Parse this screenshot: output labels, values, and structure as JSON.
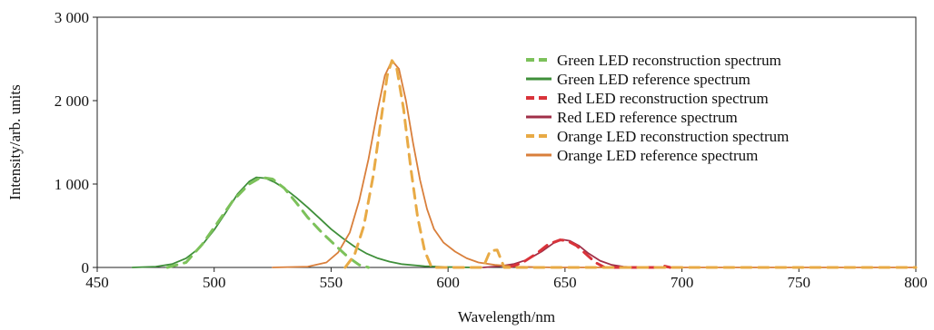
{
  "chart_data": {
    "type": "line",
    "title": "",
    "xlabel": "Wavelength/nm",
    "ylabel": "Intensity/arb. units",
    "xlim": [
      450,
      800
    ],
    "ylim": [
      0,
      3000
    ],
    "x_ticks": [
      450,
      500,
      550,
      600,
      650,
      700,
      750,
      800
    ],
    "x_tick_labels": [
      "450",
      "500",
      "550",
      "600",
      "650",
      "700",
      "750",
      "800"
    ],
    "y_ticks": [
      0,
      1000,
      2000,
      3000
    ],
    "y_tick_labels": [
      "0",
      "1 000",
      "2 000",
      "3 000"
    ],
    "grid": false,
    "legend_position": "top-right",
    "series": [
      {
        "name": "Green LED reconstruction spectrum",
        "style": "dashed",
        "color": "#7cc15a",
        "points": [
          [
            480,
            0
          ],
          [
            488,
            60
          ],
          [
            495,
            280
          ],
          [
            502,
            560
          ],
          [
            508,
            800
          ],
          [
            515,
            1000
          ],
          [
            520,
            1080
          ],
          [
            525,
            1060
          ],
          [
            530,
            950
          ],
          [
            535,
            780
          ],
          [
            540,
            600
          ],
          [
            546,
            420
          ],
          [
            552,
            260
          ],
          [
            557,
            130
          ],
          [
            562,
            30
          ],
          [
            566,
            0
          ]
        ]
      },
      {
        "name": "Green LED reference spectrum",
        "style": "solid",
        "color": "#3f8f3a",
        "points": [
          [
            465,
            0
          ],
          [
            475,
            10
          ],
          [
            482,
            40
          ],
          [
            488,
            110
          ],
          [
            494,
            240
          ],
          [
            500,
            450
          ],
          [
            505,
            660
          ],
          [
            510,
            880
          ],
          [
            515,
            1030
          ],
          [
            518,
            1080
          ],
          [
            522,
            1070
          ],
          [
            526,
            1020
          ],
          [
            530,
            950
          ],
          [
            535,
            840
          ],
          [
            540,
            720
          ],
          [
            545,
            590
          ],
          [
            550,
            460
          ],
          [
            555,
            350
          ],
          [
            560,
            250
          ],
          [
            565,
            170
          ],
          [
            570,
            110
          ],
          [
            575,
            70
          ],
          [
            580,
            40
          ],
          [
            590,
            15
          ],
          [
            600,
            5
          ],
          [
            610,
            0
          ]
        ]
      },
      {
        "name": "Red LED reconstruction spectrum",
        "style": "dashed",
        "color": "#d9333a",
        "points": [
          [
            626,
            0
          ],
          [
            632,
            60
          ],
          [
            638,
            170
          ],
          [
            643,
            280
          ],
          [
            648,
            330
          ],
          [
            651,
            320
          ],
          [
            655,
            260
          ],
          [
            659,
            160
          ],
          [
            663,
            60
          ],
          [
            667,
            0
          ],
          [
            690,
            0
          ],
          [
            692,
            20
          ],
          [
            695,
            0
          ]
        ]
      },
      {
        "name": "Red LED reference spectrum",
        "style": "solid",
        "color": "#a02f48",
        "points": [
          [
            615,
            0
          ],
          [
            622,
            15
          ],
          [
            628,
            40
          ],
          [
            634,
            95
          ],
          [
            640,
            190
          ],
          [
            645,
            290
          ],
          [
            649,
            335
          ],
          [
            652,
            320
          ],
          [
            656,
            260
          ],
          [
            660,
            170
          ],
          [
            665,
            80
          ],
          [
            670,
            30
          ],
          [
            675,
            10
          ],
          [
            682,
            0
          ]
        ]
      },
      {
        "name": "Orange LED reconstruction spectrum",
        "style": "dashed",
        "color": "#e8aa45",
        "points": [
          [
            556,
            0
          ],
          [
            560,
            150
          ],
          [
            564,
            500
          ],
          [
            568,
            1100
          ],
          [
            571,
            1700
          ],
          [
            574,
            2300
          ],
          [
            576,
            2480
          ],
          [
            578,
            2400
          ],
          [
            581,
            1900
          ],
          [
            584,
            1200
          ],
          [
            587,
            600
          ],
          [
            590,
            200
          ],
          [
            593,
            0
          ],
          [
            615,
            0
          ],
          [
            618,
            200
          ],
          [
            621,
            210
          ],
          [
            624,
            0
          ],
          [
            690,
            0
          ],
          [
            800,
            0
          ]
        ]
      },
      {
        "name": "Orange LED reference spectrum",
        "style": "solid",
        "color": "#d97f3b",
        "points": [
          [
            525,
            0
          ],
          [
            540,
            10
          ],
          [
            548,
            60
          ],
          [
            553,
            180
          ],
          [
            558,
            420
          ],
          [
            562,
            800
          ],
          [
            566,
            1300
          ],
          [
            570,
            1900
          ],
          [
            573,
            2300
          ],
          [
            576,
            2480
          ],
          [
            579,
            2380
          ],
          [
            582,
            2000
          ],
          [
            585,
            1500
          ],
          [
            588,
            1050
          ],
          [
            591,
            700
          ],
          [
            594,
            460
          ],
          [
            598,
            300
          ],
          [
            603,
            190
          ],
          [
            608,
            110
          ],
          [
            613,
            60
          ],
          [
            620,
            30
          ],
          [
            630,
            10
          ],
          [
            645,
            0
          ],
          [
            800,
            0
          ]
        ]
      }
    ]
  }
}
